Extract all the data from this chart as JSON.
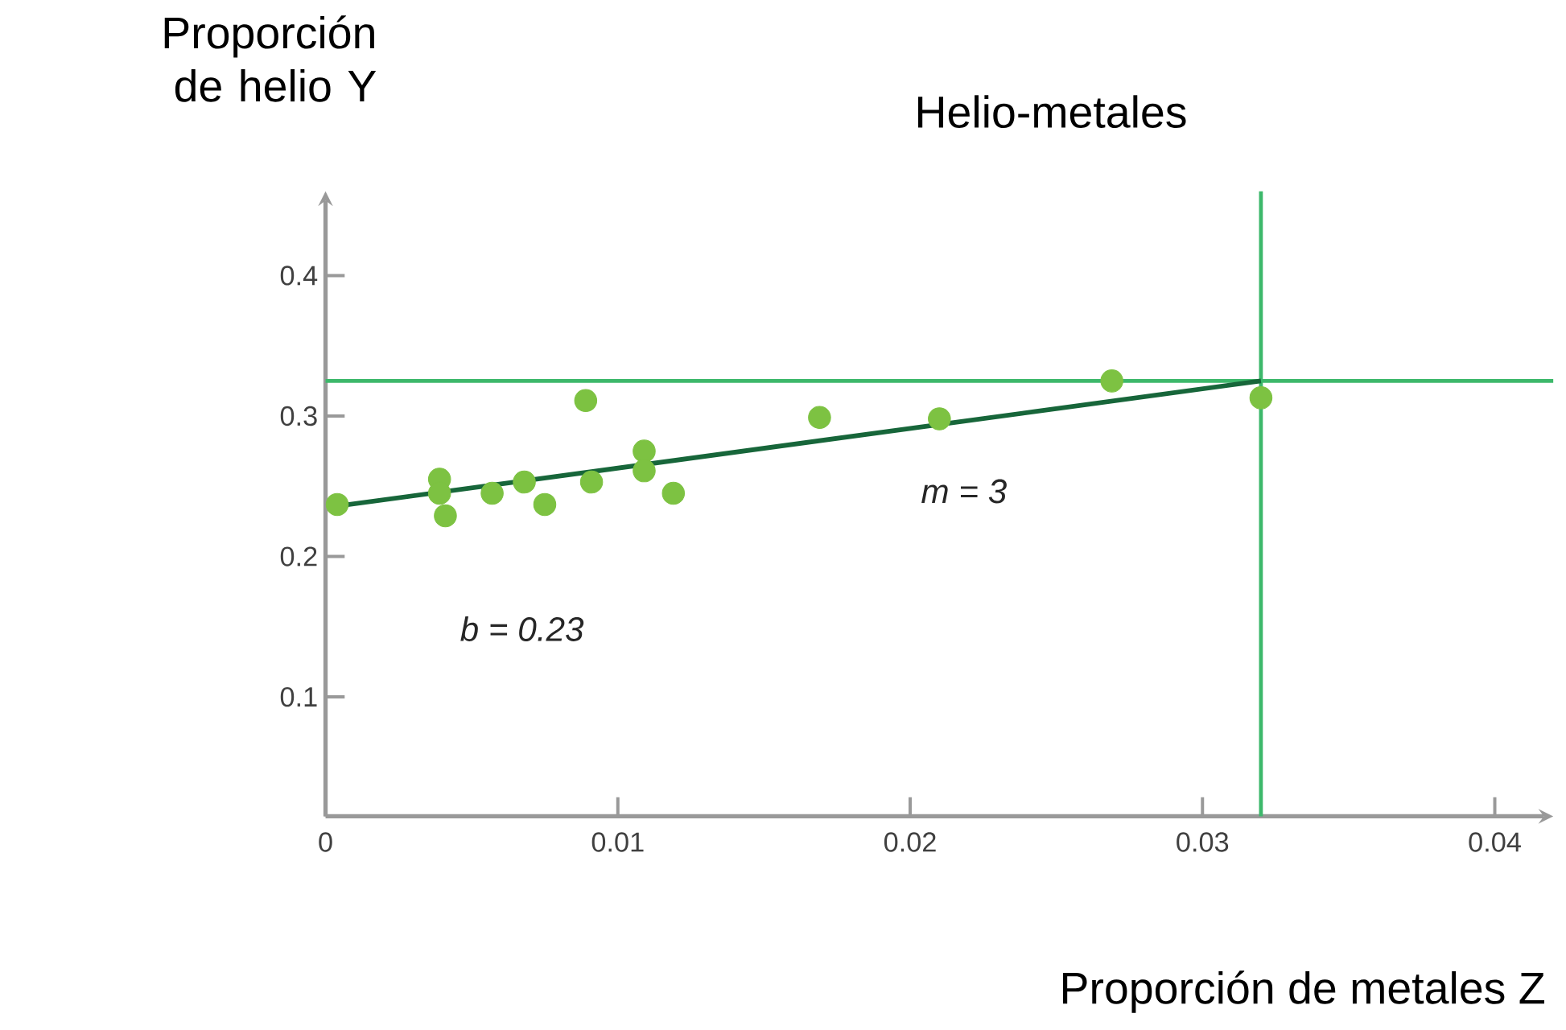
{
  "chart_data": {
    "type": "scatter",
    "title": "Helio-metales",
    "xlabel": "Proporción de metales Z",
    "ylabel": "Proporción de helio Y",
    "xlim": [
      0,
      0.042
    ],
    "ylim": [
      0.015,
      0.46
    ],
    "xticks": [
      0,
      0.01,
      0.02,
      0.03,
      0.04
    ],
    "yticks": [
      0.1,
      0.2,
      0.3,
      0.4
    ],
    "grid": false,
    "series": [
      {
        "marker": "circle",
        "color": "#7dc242",
        "x": [
          0.0004,
          0.0039,
          0.0039,
          0.0041,
          0.0057,
          0.0068,
          0.0075,
          0.0089,
          0.0091,
          0.0109,
          0.0109,
          0.0119,
          0.0169,
          0.021,
          0.0269,
          0.032
        ],
        "values": [
          0.237,
          0.255,
          0.245,
          0.229,
          0.245,
          0.253,
          0.237,
          0.311,
          0.253,
          0.275,
          0.261,
          0.245,
          0.299,
          0.298,
          0.325,
          0.313
        ]
      },
      {
        "type": "line",
        "marker": "none",
        "color": "#17663a",
        "x": [
          0.0001,
          0.032
        ],
        "values": [
          0.235,
          0.325
        ]
      }
    ],
    "ref_lines": [
      {
        "axis": "y",
        "value": 0.325,
        "color": "#3db86b"
      },
      {
        "axis": "x",
        "value": 0.032,
        "color": "#3db86b"
      }
    ],
    "annotations": [
      "b = 0.23",
      "m = 3"
    ]
  }
}
